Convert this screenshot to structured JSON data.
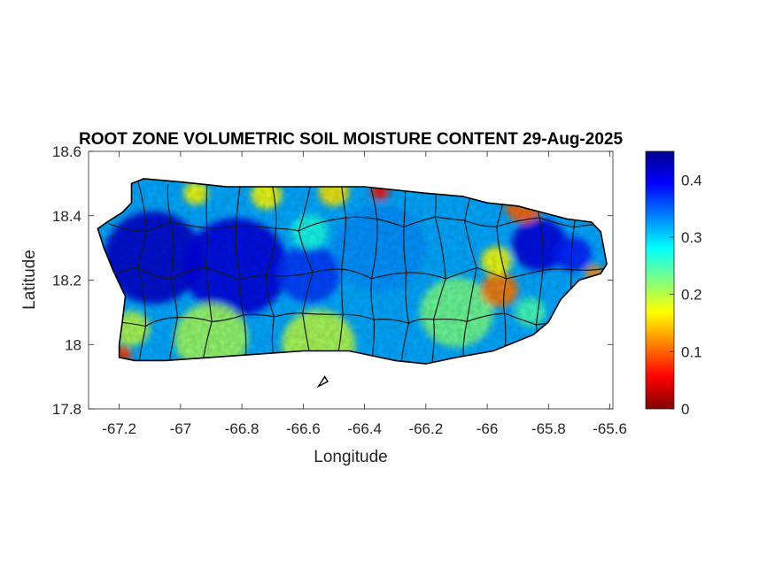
{
  "chart_data": {
    "type": "heatmap",
    "title": "ROOT ZONE VOLUMETRIC SOIL MOISTURE CONTENT 29-Aug-2025",
    "xlabel": "Longitude",
    "ylabel": "Latitude",
    "xlim": [
      -67.3,
      -65.59
    ],
    "ylim": [
      17.8,
      18.6
    ],
    "x_ticks": [
      -67.2,
      -67,
      -66.8,
      -66.6,
      -66.4,
      -66.2,
      -66,
      -65.8,
      -65.6
    ],
    "x_tick_labels": [
      "-67.2",
      "-67",
      "-66.8",
      "-66.6",
      "-66.4",
      "-66.2",
      "-66",
      "-65.8",
      "-65.6"
    ],
    "y_ticks": [
      17.8,
      18,
      18.2,
      18.4,
      18.6
    ],
    "y_tick_labels": [
      "17.8",
      "18",
      "18.2",
      "18.4",
      "18.6"
    ],
    "colorbar": {
      "colormap": "jet",
      "clim": [
        0,
        0.45
      ],
      "ticks": [
        0,
        0.1,
        0.2,
        0.3,
        0.4
      ],
      "tick_labels": [
        "0",
        "0.1",
        "0.2",
        "0.3",
        "0.4"
      ],
      "colors": [
        "#7f0000",
        "#ff0000",
        "#ffff00",
        "#00ffff",
        "#0000ff",
        "#00008f"
      ]
    },
    "outline": {
      "island": [
        [
          -67.27,
          18.36
        ],
        [
          -67.24,
          18.38
        ],
        [
          -67.19,
          18.41
        ],
        [
          -67.16,
          18.44
        ],
        [
          -67.16,
          18.5
        ],
        [
          -67.12,
          18.515
        ],
        [
          -67.0,
          18.505
        ],
        [
          -66.85,
          18.49
        ],
        [
          -66.65,
          18.49
        ],
        [
          -66.4,
          18.49
        ],
        [
          -66.2,
          18.47
        ],
        [
          -66.08,
          18.46
        ],
        [
          -66.0,
          18.44
        ],
        [
          -65.9,
          18.43
        ],
        [
          -65.82,
          18.41
        ],
        [
          -65.74,
          18.39
        ],
        [
          -65.66,
          18.38
        ],
        [
          -65.63,
          18.35
        ],
        [
          -65.61,
          18.25
        ],
        [
          -65.63,
          18.22
        ],
        [
          -65.7,
          18.2
        ],
        [
          -65.76,
          18.14
        ],
        [
          -65.8,
          18.07
        ],
        [
          -65.85,
          18.03
        ],
        [
          -65.98,
          17.98
        ],
        [
          -66.1,
          17.96
        ],
        [
          -66.2,
          17.94
        ],
        [
          -66.3,
          17.95
        ],
        [
          -66.45,
          17.98
        ],
        [
          -66.6,
          17.98
        ],
        [
          -66.75,
          17.97
        ],
        [
          -66.9,
          17.96
        ],
        [
          -67.05,
          17.95
        ],
        [
          -67.15,
          17.95
        ],
        [
          -67.2,
          17.96
        ],
        [
          -67.2,
          18.0
        ],
        [
          -67.19,
          18.07
        ],
        [
          -67.18,
          18.15
        ],
        [
          -67.22,
          18.23
        ],
        [
          -67.25,
          18.3
        ]
      ],
      "islet": [
        [
          -66.55,
          17.87
        ],
        [
          -66.52,
          17.885
        ],
        [
          -66.53,
          17.9
        ]
      ]
    },
    "fields": {
      "base_value": 0.32,
      "hotspots": [
        {
          "lon": -67.09,
          "lat": 18.27,
          "radius_deg": 0.16,
          "value": 0.42
        },
        {
          "lon": -66.82,
          "lat": 18.24,
          "radius_deg": 0.17,
          "value": 0.41
        },
        {
          "lon": -66.58,
          "lat": 18.22,
          "radius_deg": 0.1,
          "value": 0.37
        },
        {
          "lon": -65.83,
          "lat": 18.31,
          "radius_deg": 0.09,
          "value": 0.41
        },
        {
          "lon": -65.72,
          "lat": 18.28,
          "radius_deg": 0.06,
          "value": 0.38
        },
        {
          "lon": -66.35,
          "lat": 18.3,
          "radius_deg": 0.15,
          "value": 0.33
        },
        {
          "lon": -66.9,
          "lat": 18.02,
          "radius_deg": 0.12,
          "value": 0.21
        },
        {
          "lon": -66.55,
          "lat": 18.0,
          "radius_deg": 0.12,
          "value": 0.2
        },
        {
          "lon": -67.16,
          "lat": 18.05,
          "radius_deg": 0.06,
          "value": 0.2
        },
        {
          "lon": -67.19,
          "lat": 17.97,
          "radius_deg": 0.03,
          "value": 0.08
        },
        {
          "lon": -66.1,
          "lat": 18.1,
          "radius_deg": 0.12,
          "value": 0.23
        },
        {
          "lon": -65.96,
          "lat": 18.17,
          "radius_deg": 0.06,
          "value": 0.11
        },
        {
          "lon": -65.97,
          "lat": 18.26,
          "radius_deg": 0.05,
          "value": 0.17
        },
        {
          "lon": -65.86,
          "lat": 18.1,
          "radius_deg": 0.05,
          "value": 0.25
        },
        {
          "lon": -66.95,
          "lat": 18.47,
          "radius_deg": 0.04,
          "value": 0.17
        },
        {
          "lon": -66.72,
          "lat": 18.465,
          "radius_deg": 0.05,
          "value": 0.17
        },
        {
          "lon": -66.5,
          "lat": 18.475,
          "radius_deg": 0.05,
          "value": 0.16
        },
        {
          "lon": -66.35,
          "lat": 18.475,
          "radius_deg": 0.03,
          "value": 0.06
        },
        {
          "lon": -65.88,
          "lat": 18.43,
          "radius_deg": 0.06,
          "value": 0.1
        },
        {
          "lon": -65.65,
          "lat": 18.22,
          "radius_deg": 0.03,
          "value": 0.12
        },
        {
          "lon": -66.58,
          "lat": 18.35,
          "radius_deg": 0.06,
          "value": 0.27
        }
      ]
    }
  }
}
